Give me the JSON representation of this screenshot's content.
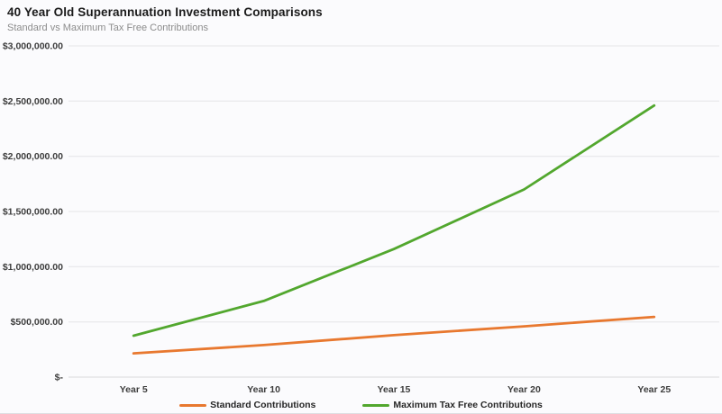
{
  "header": {
    "title": "40 Year Old Superannuation Investment Comparisons",
    "subtitle": "Standard vs Maximum Tax Free Contributions"
  },
  "colors": {
    "standard_series": "#E8782F",
    "max_tax_free_series": "#52A72E",
    "gridline": "#E4E4E7",
    "zero_gridline": "#D8D8DB",
    "title_text": "#1A1A1A",
    "subtitle_text": "#8C8C8C",
    "axis_label_text": "#3D3D3D"
  },
  "chart_data": {
    "type": "line",
    "title": "40 Year Old Superannuation Investment Comparisons",
    "subtitle": "Standard vs Maximum Tax Free Contributions",
    "categories": [
      "Year 5",
      "Year 10",
      "Year 15",
      "Year 20",
      "Year 25"
    ],
    "series": [
      {
        "name": "Standard Contributions",
        "color": "#E8782F",
        "values": [
          215000,
          290000,
          380000,
          460000,
          545000
        ]
      },
      {
        "name": "Maximum Tax Free Contributions",
        "color": "#52A72E",
        "values": [
          375000,
          690000,
          1160000,
          1700000,
          2460000
        ]
      }
    ],
    "xlabel": "",
    "ylabel": "",
    "ylim": [
      0,
      3000000
    ],
    "y_ticks": [
      {
        "value": 3000000,
        "label": "$3,000,000.00"
      },
      {
        "value": 2500000,
        "label": "$2,500,000.00"
      },
      {
        "value": 2000000,
        "label": "$2,000,000.00"
      },
      {
        "value": 1500000,
        "label": "$1,500,000.00"
      },
      {
        "value": 1000000,
        "label": "$1,000,000.00"
      },
      {
        "value": 500000,
        "label": "$500,000.00"
      },
      {
        "value": 0,
        "label": "$-"
      }
    ],
    "grid": "horizontal",
    "legend_position": "bottom"
  }
}
